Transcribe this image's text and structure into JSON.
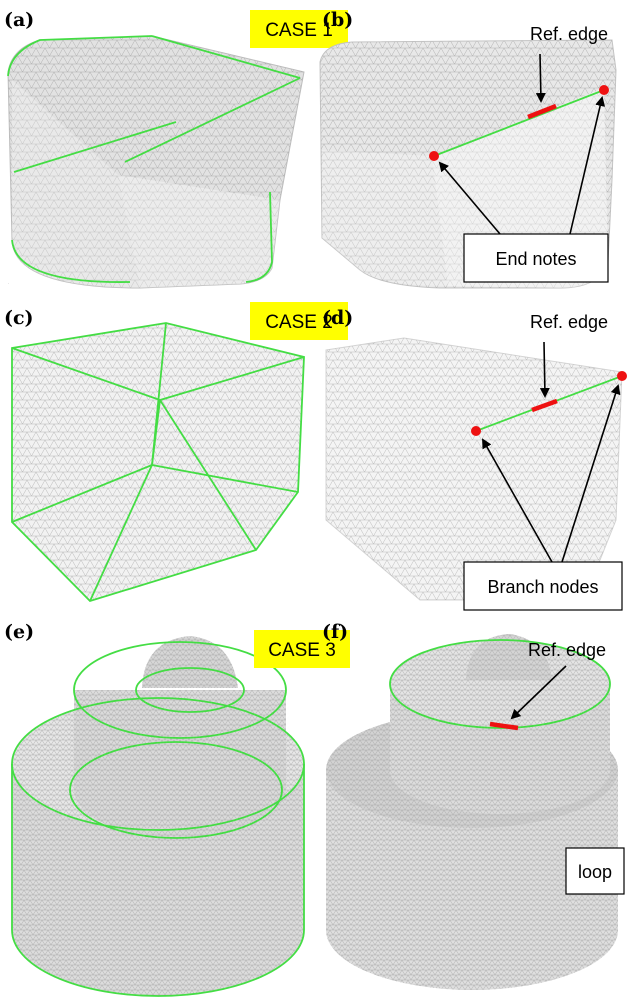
{
  "panels": {
    "a": {
      "label": "(a)",
      "case_label": "CASE 1"
    },
    "b": {
      "label": "(b)",
      "ref_edge": "Ref. edge",
      "callout": "End notes"
    },
    "c": {
      "label": "(c)",
      "case_label": "CASE 2"
    },
    "d": {
      "label": "(d)",
      "ref_edge": "Ref. edge",
      "callout": "Branch nodes"
    },
    "e": {
      "label": "(e)",
      "case_label": "CASE 3"
    },
    "f": {
      "label": "(f)",
      "ref_edge": "Ref. edge",
      "callout": "loop"
    }
  },
  "colors": {
    "feature_edge": "#44dd44",
    "ref_edge": "#ee1111",
    "node": "#ee1111",
    "case_bg": "#ffff00",
    "mesh": "#9a9a9a"
  }
}
